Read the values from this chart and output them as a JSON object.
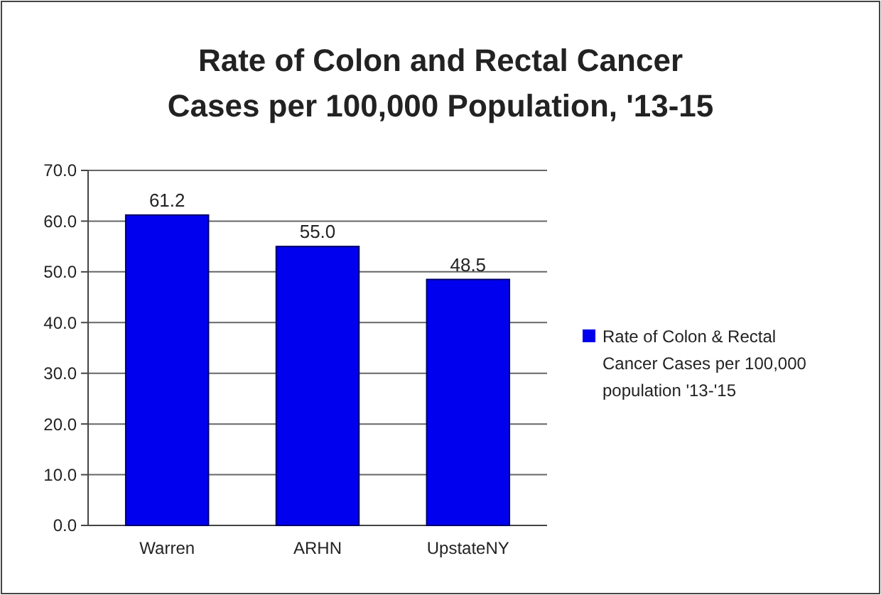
{
  "chart_data": {
    "type": "bar",
    "title": "Rate of Colon and Rectal Cancer Cases per 100,000 Population, '13-15",
    "categories": [
      "Warren",
      "ARHN",
      "UpstateNY"
    ],
    "series": [
      {
        "name": "Rate of Colon & Rectal Cancer Cases per 100,000 population '13-'15",
        "color": "#0000ee",
        "values": [
          61.2,
          55.0,
          48.5
        ],
        "value_labels": [
          "61.2",
          "55.0",
          "48.5"
        ]
      }
    ],
    "ylim": [
      0,
      70
    ],
    "yticks": [
      {
        "value": 0,
        "label": "0.0"
      },
      {
        "value": 10,
        "label": "10.0"
      },
      {
        "value": 20,
        "label": "20.0"
      },
      {
        "value": 30,
        "label": "30.0"
      },
      {
        "value": 40,
        "label": "40.0"
      },
      {
        "value": 50,
        "label": "50.0"
      },
      {
        "value": 60,
        "label": "60.0"
      },
      {
        "value": 70,
        "label": "70.0"
      }
    ],
    "grid": "y",
    "legend": "right"
  }
}
